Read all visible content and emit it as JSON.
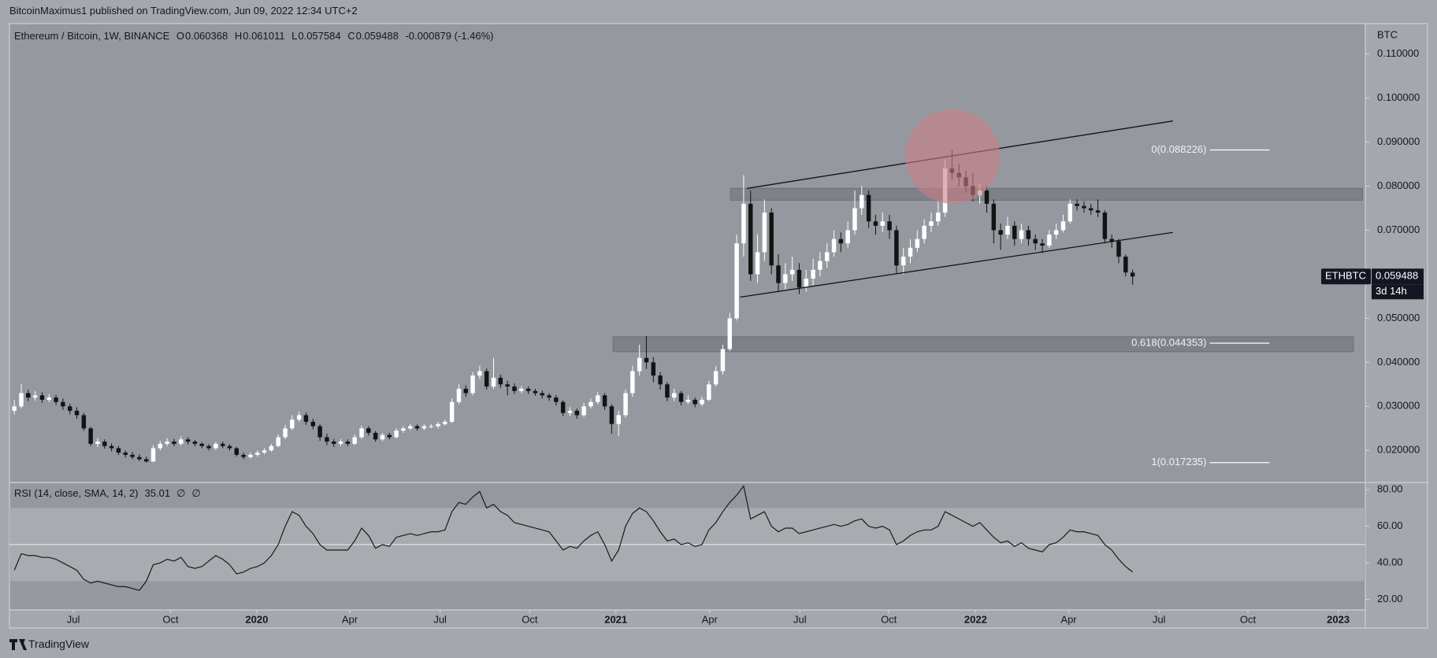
{
  "header": {
    "byline": "BitcoinMaximus1 published on TradingView.com, Jun 09, 2022 12:34 UTC+2",
    "footer": "TradingView"
  },
  "chart_data": [
    {
      "type": "candlestick",
      "title": "Ethereum / Bitcoin, 1W, BINANCE",
      "ohlc_labels": [
        "O",
        "H",
        "L",
        "C"
      ],
      "change": "-0.000879 (-1.46%)",
      "axis_unit": "BTC",
      "symbol": "ETHBTC",
      "countdown": "3d 14h",
      "colors": {
        "up": "#ffffff",
        "down": "#131313",
        "line": "#131313",
        "zone": "#6e7077",
        "fib": "#ffffff",
        "tag": "#131722"
      },
      "open": [
        0.029,
        0.03,
        0.033,
        0.032,
        0.0325,
        0.0315,
        0.032,
        0.031,
        0.03,
        0.029,
        0.028,
        0.025,
        0.0215,
        0.022,
        0.021,
        0.0205,
        0.0195,
        0.019,
        0.0185,
        0.018,
        0.0175,
        0.0205,
        0.0215,
        0.022,
        0.0215,
        0.0225,
        0.022,
        0.0215,
        0.021,
        0.0205,
        0.0215,
        0.021,
        0.0205,
        0.019,
        0.0185,
        0.019,
        0.0195,
        0.02,
        0.021,
        0.023,
        0.025,
        0.027,
        0.028,
        0.0265,
        0.0255,
        0.023,
        0.022,
        0.0215,
        0.022,
        0.0215,
        0.023,
        0.025,
        0.024,
        0.0225,
        0.0235,
        0.023,
        0.0245,
        0.025,
        0.0255,
        0.025,
        0.0255,
        0.0255,
        0.026,
        0.0265,
        0.031,
        0.034,
        0.033,
        0.037,
        0.038,
        0.0345,
        0.0365,
        0.035,
        0.0345,
        0.0335,
        0.034,
        0.0335,
        0.033,
        0.0325,
        0.032,
        0.031,
        0.0285,
        0.029,
        0.028,
        0.03,
        0.031,
        0.0325,
        0.03,
        0.026,
        0.028,
        0.033,
        0.038,
        0.041,
        0.04,
        0.037,
        0.035,
        0.032,
        0.033,
        0.031,
        0.0315,
        0.0305,
        0.0315,
        0.035,
        0.038,
        0.043,
        0.05,
        0.067,
        0.076,
        0.06,
        0.065,
        0.074,
        0.062,
        0.058,
        0.06,
        0.061,
        0.057,
        0.059,
        0.061,
        0.063,
        0.065,
        0.068,
        0.067,
        0.07,
        0.075,
        0.078,
        0.072,
        0.071,
        0.072,
        0.07,
        0.062,
        0.064,
        0.066,
        0.068,
        0.071,
        0.072,
        0.074,
        0.084,
        0.083,
        0.082,
        0.08,
        0.078,
        0.079,
        0.076,
        0.07,
        0.069,
        0.071,
        0.068,
        0.07,
        0.068,
        0.067,
        0.0665,
        0.069,
        0.07,
        0.072,
        0.076,
        0.0755,
        0.075,
        0.0745,
        0.074,
        0.068,
        0.0675,
        0.064,
        0.060368
      ],
      "high": [
        0.0315,
        0.035,
        0.0338,
        0.0335,
        0.0332,
        0.0328,
        0.0326,
        0.0318,
        0.0306,
        0.0298,
        0.0285,
        0.0254,
        0.0228,
        0.0225,
        0.0216,
        0.021,
        0.02,
        0.0196,
        0.0191,
        0.0186,
        0.0212,
        0.0222,
        0.0228,
        0.0226,
        0.0232,
        0.023,
        0.0224,
        0.0219,
        0.0214,
        0.022,
        0.022,
        0.0214,
        0.0208,
        0.0195,
        0.0195,
        0.02,
        0.0205,
        0.0215,
        0.0236,
        0.0258,
        0.028,
        0.0288,
        0.0286,
        0.0272,
        0.026,
        0.0238,
        0.0226,
        0.0226,
        0.0225,
        0.0236,
        0.0256,
        0.0255,
        0.0244,
        0.024,
        0.024,
        0.025,
        0.0255,
        0.026,
        0.0259,
        0.026,
        0.026,
        0.0265,
        0.027,
        0.0318,
        0.035,
        0.0348,
        0.0378,
        0.0392,
        0.0386,
        0.041,
        0.0372,
        0.0358,
        0.0352,
        0.0346,
        0.0345,
        0.034,
        0.0336,
        0.033,
        0.0326,
        0.0314,
        0.0298,
        0.0295,
        0.0308,
        0.0318,
        0.0332,
        0.033,
        0.0305,
        0.029,
        0.0338,
        0.0392,
        0.044,
        0.046,
        0.0412,
        0.0378,
        0.0355,
        0.034,
        0.0335,
        0.0325,
        0.032,
        0.0322,
        0.0358,
        0.0392,
        0.044,
        0.0512,
        0.069,
        0.0825,
        0.079,
        0.069,
        0.077,
        0.075,
        0.0645,
        0.0625,
        0.064,
        0.0625,
        0.061,
        0.0635,
        0.065,
        0.067,
        0.07,
        0.0695,
        0.072,
        0.079,
        0.08,
        0.079,
        0.0735,
        0.074,
        0.0735,
        0.071,
        0.066,
        0.068,
        0.07,
        0.0725,
        0.074,
        0.0765,
        0.086,
        0.088226,
        0.085,
        0.0835,
        0.083,
        0.0805,
        0.08,
        0.077,
        0.0715,
        0.073,
        0.072,
        0.0715,
        0.071,
        0.069,
        0.068,
        0.07,
        0.0715,
        0.0735,
        0.077,
        0.077,
        0.0765,
        0.076,
        0.077,
        0.0745,
        0.069,
        0.068,
        0.0645,
        0.061011
      ],
      "low": [
        0.0282,
        0.0295,
        0.0312,
        0.0313,
        0.0308,
        0.031,
        0.0303,
        0.0292,
        0.0282,
        0.0272,
        0.0245,
        0.021,
        0.0208,
        0.0204,
        0.0198,
        0.019,
        0.0184,
        0.018,
        0.0176,
        0.017235,
        0.0173,
        0.02,
        0.021,
        0.021,
        0.0211,
        0.0214,
        0.021,
        0.0205,
        0.02,
        0.0201,
        0.0205,
        0.02,
        0.0186,
        0.018,
        0.0181,
        0.0186,
        0.0191,
        0.0197,
        0.0207,
        0.0226,
        0.0246,
        0.0265,
        0.0258,
        0.0248,
        0.0222,
        0.0212,
        0.0208,
        0.021,
        0.021,
        0.0212,
        0.0226,
        0.0234,
        0.022,
        0.0221,
        0.0225,
        0.0227,
        0.024,
        0.0246,
        0.0245,
        0.0246,
        0.025,
        0.025,
        0.0256,
        0.0262,
        0.0305,
        0.0322,
        0.0325,
        0.0362,
        0.0338,
        0.034,
        0.0342,
        0.0325,
        0.0328,
        0.033,
        0.0328,
        0.0324,
        0.0318,
        0.0313,
        0.0302,
        0.0278,
        0.0278,
        0.0272,
        0.0276,
        0.0295,
        0.0305,
        0.0292,
        0.0238,
        0.0232,
        0.0275,
        0.0322,
        0.037,
        0.0385,
        0.0355,
        0.0338,
        0.0312,
        0.0312,
        0.0302,
        0.0305,
        0.0298,
        0.03,
        0.0312,
        0.0345,
        0.0372,
        0.0425,
        0.0495,
        0.064,
        0.0585,
        0.058,
        0.063,
        0.06,
        0.056,
        0.0565,
        0.0585,
        0.0555,
        0.056,
        0.0575,
        0.0595,
        0.0615,
        0.064,
        0.065,
        0.066,
        0.069,
        0.0735,
        0.0705,
        0.069,
        0.0695,
        0.068,
        0.06,
        0.06,
        0.0625,
        0.065,
        0.067,
        0.0695,
        0.071,
        0.073,
        0.0815,
        0.08,
        0.0785,
        0.0765,
        0.076,
        0.074,
        0.067,
        0.0655,
        0.068,
        0.0665,
        0.067,
        0.0665,
        0.0655,
        0.0648,
        0.066,
        0.068,
        0.0695,
        0.0715,
        0.0745,
        0.074,
        0.0735,
        0.073,
        0.067,
        0.066,
        0.0625,
        0.0595,
        0.057584
      ],
      "close": [
        0.03,
        0.033,
        0.032,
        0.0325,
        0.0315,
        0.032,
        0.031,
        0.03,
        0.029,
        0.028,
        0.025,
        0.0215,
        0.022,
        0.021,
        0.0205,
        0.0195,
        0.019,
        0.0185,
        0.018,
        0.0175,
        0.0205,
        0.0215,
        0.022,
        0.0215,
        0.0225,
        0.022,
        0.0215,
        0.021,
        0.0205,
        0.0215,
        0.021,
        0.0205,
        0.019,
        0.0185,
        0.019,
        0.0195,
        0.02,
        0.021,
        0.023,
        0.025,
        0.027,
        0.028,
        0.0265,
        0.0255,
        0.023,
        0.022,
        0.0215,
        0.022,
        0.0215,
        0.023,
        0.025,
        0.024,
        0.0225,
        0.0235,
        0.023,
        0.0245,
        0.025,
        0.0255,
        0.025,
        0.0255,
        0.0255,
        0.026,
        0.0265,
        0.031,
        0.034,
        0.033,
        0.037,
        0.038,
        0.0345,
        0.0365,
        0.035,
        0.0345,
        0.0335,
        0.034,
        0.0335,
        0.033,
        0.0325,
        0.032,
        0.031,
        0.0285,
        0.029,
        0.028,
        0.03,
        0.031,
        0.0325,
        0.03,
        0.026,
        0.028,
        0.033,
        0.038,
        0.041,
        0.04,
        0.037,
        0.035,
        0.032,
        0.033,
        0.031,
        0.0315,
        0.0305,
        0.0315,
        0.035,
        0.038,
        0.043,
        0.05,
        0.067,
        0.076,
        0.06,
        0.065,
        0.074,
        0.062,
        0.058,
        0.06,
        0.061,
        0.057,
        0.059,
        0.061,
        0.063,
        0.065,
        0.068,
        0.067,
        0.07,
        0.075,
        0.078,
        0.072,
        0.071,
        0.072,
        0.07,
        0.062,
        0.064,
        0.066,
        0.068,
        0.071,
        0.072,
        0.074,
        0.084,
        0.083,
        0.082,
        0.08,
        0.078,
        0.079,
        0.076,
        0.07,
        0.069,
        0.071,
        0.068,
        0.07,
        0.068,
        0.067,
        0.0665,
        0.069,
        0.07,
        0.072,
        0.076,
        0.0755,
        0.075,
        0.0745,
        0.074,
        0.068,
        0.0675,
        0.064,
        0.0604,
        0.059488
      ],
      "xlim": [
        -0.7,
        194.5
      ],
      "ylim": [
        0.0129,
        0.1169
      ],
      "yticks": [
        {
          "value": 0.02,
          "label": "0.020000"
        },
        {
          "value": 0.03,
          "label": "0.030000"
        },
        {
          "value": 0.04,
          "label": "0.040000"
        },
        {
          "value": 0.05,
          "label": "0.050000"
        },
        {
          "value": 0.06,
          "label": "0.060000"
        },
        {
          "value": 0.07,
          "label": "0.070000"
        },
        {
          "value": 0.08,
          "label": "0.080000"
        },
        {
          "value": 0.09,
          "label": "0.090000"
        },
        {
          "value": 0.1,
          "label": "0.100000"
        },
        {
          "value": 0.11,
          "label": "0.110000"
        }
      ],
      "grid": false,
      "channel": [
        {
          "x": [
            105.5,
            166.8
          ],
          "y": [
            0.0795,
            0.0948
          ]
        },
        {
          "x": [
            104.5,
            166.8
          ],
          "y": [
            0.0548,
            0.0695
          ]
        }
      ],
      "zones": [
        {
          "x": [
            103.1,
            194.1
          ],
          "y": [
            0.0768,
            0.0795
          ]
        },
        {
          "x": [
            86.2,
            192.8
          ],
          "y": [
            0.0424,
            0.0458
          ]
        }
      ],
      "highlight": {
        "x": 135.1,
        "y": 0.0867,
        "color": "#c97f86"
      },
      "fib_x": [
        172.1,
        180.7
      ],
      "fib": [
        {
          "label": "0(0.088226)",
          "value": 0.088226
        },
        {
          "label": "0.618(0.044353)",
          "value": 0.044353
        },
        {
          "label": "1(0.017235)",
          "value": 0.017235
        }
      ]
    },
    {
      "type": "line",
      "title": "RSI (14, close, SMA, 14, 2)",
      "flags": [
        "∅",
        "∅"
      ],
      "color": "#1a1a1a",
      "values": [
        36,
        45,
        44,
        44,
        43,
        43,
        42,
        40,
        38,
        36,
        31,
        29,
        30,
        29,
        28,
        27,
        27,
        26,
        25,
        30,
        39,
        40,
        42,
        41,
        43,
        38,
        37,
        38,
        41,
        44,
        42,
        39,
        34,
        35,
        37,
        38,
        40,
        44,
        50,
        60,
        68,
        66,
        60,
        56,
        50,
        47,
        47,
        47,
        47,
        52,
        59,
        55,
        48,
        50,
        49,
        54,
        55,
        56,
        55,
        56,
        57,
        57,
        58,
        68,
        73,
        72,
        76,
        79,
        70,
        72,
        68,
        66,
        62,
        61,
        60,
        59,
        58,
        57,
        52,
        47,
        49,
        48,
        52,
        55,
        57,
        50,
        41,
        47,
        60,
        67,
        70,
        68,
        63,
        57,
        52,
        53,
        50,
        51,
        49,
        50,
        58,
        62,
        68,
        73,
        77,
        82,
        64,
        66,
        68,
        60,
        57,
        59,
        59,
        56,
        57,
        58,
        59,
        60,
        61,
        60,
        61,
        63,
        64,
        60,
        59,
        60,
        58,
        50,
        52,
        55,
        57,
        58,
        58,
        60,
        68,
        66,
        64,
        62,
        60,
        62,
        58,
        54,
        51,
        52,
        49,
        51,
        48,
        47,
        46,
        50,
        51,
        54,
        58,
        57,
        57,
        56,
        55,
        50,
        47,
        42,
        38,
        35.01
      ],
      "band": [
        30,
        70
      ],
      "midline": 50,
      "band_color": "#a9abb0",
      "xlim": [
        -0.7,
        194.5
      ],
      "ylim": [
        14.7,
        83.5
      ],
      "yticks": [
        {
          "value": 20,
          "label": "20.00"
        },
        {
          "value": 40,
          "label": "40.00"
        },
        {
          "value": 60,
          "label": "60.00"
        },
        {
          "value": 80,
          "label": "80.00"
        }
      ],
      "xticks": [
        {
          "value": 8.5,
          "label": "Jul"
        },
        {
          "value": 22.5,
          "label": "Oct"
        },
        {
          "value": 34.9,
          "label": "2020"
        },
        {
          "value": 48.3,
          "label": "Apr"
        },
        {
          "value": 61.3,
          "label": "Jul"
        },
        {
          "value": 74.2,
          "label": "Oct"
        },
        {
          "value": 86.6,
          "label": "2021"
        },
        {
          "value": 100.1,
          "label": "Apr"
        },
        {
          "value": 113.1,
          "label": "Jul"
        },
        {
          "value": 125.9,
          "label": "Oct"
        },
        {
          "value": 138.4,
          "label": "2022"
        },
        {
          "value": 151.8,
          "label": "Apr"
        },
        {
          "value": 164.8,
          "label": "Jul"
        },
        {
          "value": 177.6,
          "label": "Oct"
        },
        {
          "value": 190.6,
          "label": "2023"
        }
      ]
    }
  ]
}
